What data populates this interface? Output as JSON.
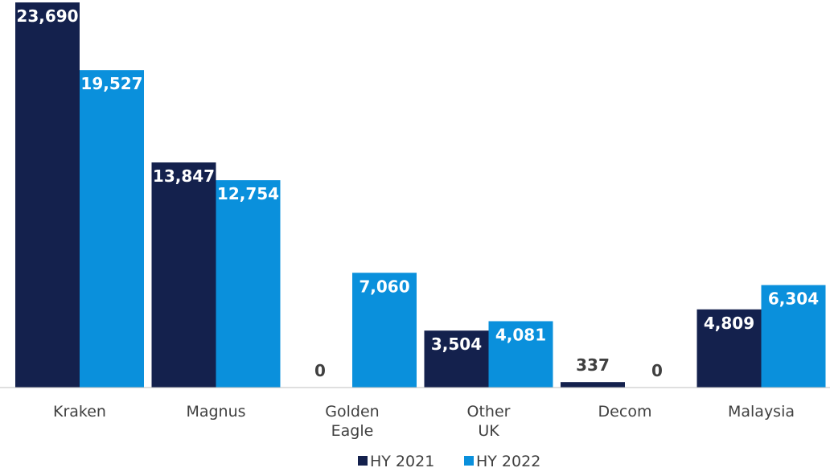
{
  "chart_data": {
    "type": "bar",
    "categories": [
      [
        "Kraken"
      ],
      [
        "Magnus"
      ],
      [
        "Golden",
        "Eagle"
      ],
      [
        "Other",
        "UK"
      ],
      [
        "Decom"
      ],
      [
        "Malaysia"
      ]
    ],
    "series": [
      {
        "name": "HY 2021",
        "color": "#14214d",
        "values": [
          23690,
          13847,
          0,
          3504,
          337,
          4809
        ],
        "labels": [
          "23,690",
          "13,847",
          "0",
          "3,504",
          "337",
          "4,809"
        ]
      },
      {
        "name": "HY 2022",
        "color": "#0a90dc",
        "values": [
          19527,
          12754,
          7060,
          4081,
          0,
          6304
        ],
        "labels": [
          "19,527",
          "12,754",
          "7,060",
          "4,081",
          "0",
          "6,304"
        ]
      }
    ],
    "ylim": [
      0,
      23690
    ],
    "grid": false,
    "legend_position": "bottom"
  }
}
